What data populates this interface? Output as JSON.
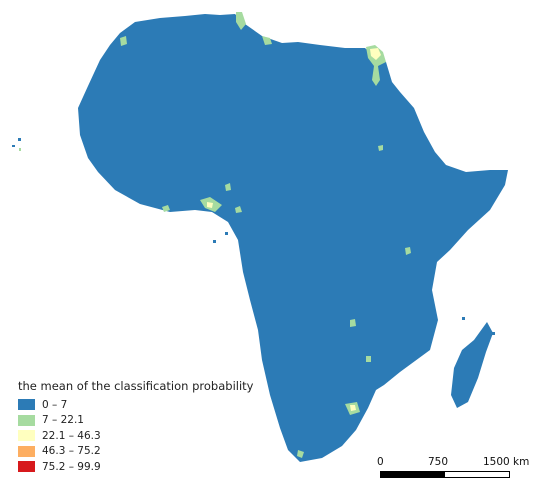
{
  "map": {
    "base_color": "#2c7bb6",
    "legend": {
      "title": "the mean of the classification probability",
      "classes": [
        {
          "label": "0 – 7",
          "color": "#2c7bb6"
        },
        {
          "label": "7 – 22.1",
          "color": "#a6dba0"
        },
        {
          "label": "22.1 – 46.3",
          "color": "#ffffbf"
        },
        {
          "label": "46.3 – 75.2",
          "color": "#fdae61"
        },
        {
          "label": "75.2 – 99.9",
          "color": "#d7191c"
        }
      ]
    },
    "scale_bar": {
      "labels": [
        "0",
        "750",
        "1500 km"
      ]
    }
  }
}
